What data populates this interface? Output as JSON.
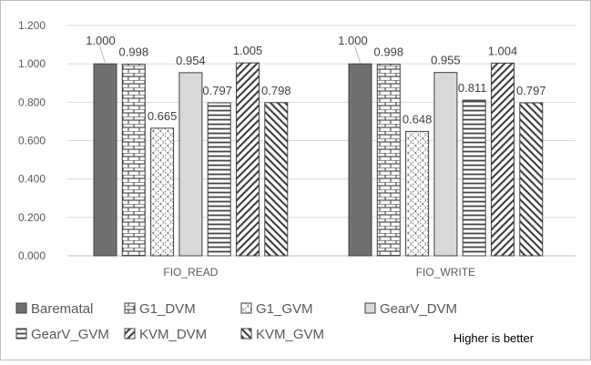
{
  "chart_data": {
    "type": "bar",
    "categories": [
      "FIO_READ",
      "FIO_WRITE"
    ],
    "series": [
      {
        "name": "Barematal",
        "values": [
          1.0,
          1.0
        ],
        "color": "#707070",
        "pattern": "solid"
      },
      {
        "name": "G1_DVM",
        "values": [
          0.998,
          0.998
        ],
        "color": "#555555",
        "pattern": "brick"
      },
      {
        "name": "G1_GVM",
        "values": [
          0.665,
          0.648
        ],
        "color": "#555555",
        "pattern": "diagonal-cross"
      },
      {
        "name": "GearV_DVM",
        "values": [
          0.954,
          0.955
        ],
        "color": "#d9d9d9",
        "pattern": "solid-light"
      },
      {
        "name": "GearV_GVM",
        "values": [
          0.797,
          0.811
        ],
        "color": "#555555",
        "pattern": "horizontal-lines"
      },
      {
        "name": "KVM_DVM",
        "values": [
          1.005,
          1.004
        ],
        "color": "#555555",
        "pattern": "wide-diagonal"
      },
      {
        "name": "KVM_GVM",
        "values": [
          0.798,
          0.797
        ],
        "color": "#555555",
        "pattern": "back-diagonal"
      }
    ],
    "data_labels": [
      [
        "1.000",
        "0.998",
        "0.665",
        "0.954",
        "0.797",
        "1.005",
        "0.798"
      ],
      [
        "1.000",
        "0.998",
        "0.648",
        "0.955",
        "0.811",
        "1.004",
        "0.797"
      ]
    ],
    "ylim": [
      0,
      1.2
    ],
    "yticks": [
      "0.000",
      "0.200",
      "0.400",
      "0.600",
      "0.800",
      "1.000",
      "1.200"
    ],
    "xlabel": "",
    "ylabel": "",
    "grid": "horizontal",
    "legend_position": "bottom",
    "annotation": "Higher is better"
  }
}
